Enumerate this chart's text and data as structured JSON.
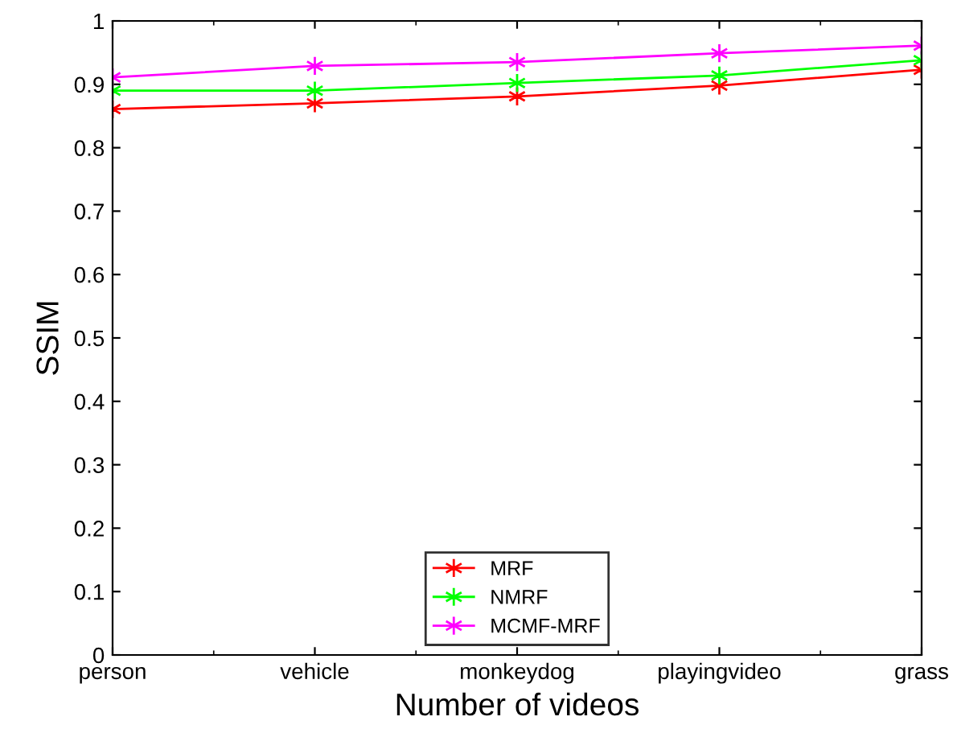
{
  "chart_data": {
    "type": "line",
    "xlabel": "Number of videos",
    "ylabel": "SSIM",
    "categories": [
      "person",
      "vehicle",
      "monkeydog",
      "playingvideo",
      "grass"
    ],
    "series": [
      {
        "name": "MRF",
        "color": "#ff0000",
        "values": [
          0.861,
          0.87,
          0.881,
          0.898,
          0.923
        ]
      },
      {
        "name": "NMRF",
        "color": "#00ff00",
        "values": [
          0.89,
          0.89,
          0.902,
          0.914,
          0.938
        ]
      },
      {
        "name": "MCMF-MRF",
        "color": "#ff00ff",
        "values": [
          0.911,
          0.929,
          0.935,
          0.949,
          0.961
        ]
      }
    ],
    "ylim": [
      0,
      1
    ],
    "yticks": [
      0,
      0.1,
      0.2,
      0.3,
      0.4,
      0.5,
      0.6,
      0.7,
      0.8,
      0.9,
      1
    ],
    "marker": "cross",
    "line_style": "solid",
    "grid": false,
    "legend": "bottom"
  }
}
